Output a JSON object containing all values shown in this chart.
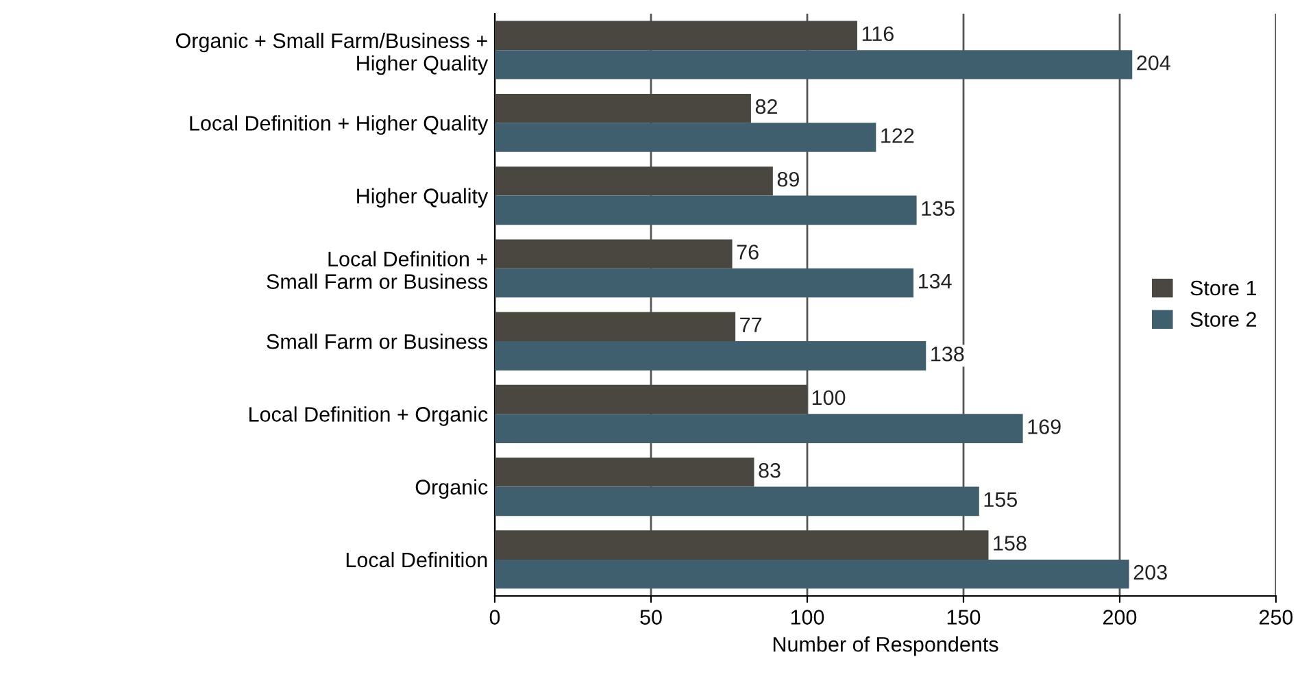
{
  "chart_data": {
    "type": "bar",
    "orientation": "horizontal",
    "categories": [
      "Organic + Small Farm/Business +\nHigher Quality",
      "Local Definition + Higher Quality",
      "Higher Quality",
      "Local Definition +\nSmall Farm or Business",
      "Small Farm or Business",
      "Local Definition + Organic",
      "Organic",
      "Local Definition"
    ],
    "series": [
      {
        "name": "Store 1",
        "color": "#4a4640",
        "values": [
          116,
          82,
          89,
          76,
          77,
          100,
          83,
          158
        ]
      },
      {
        "name": "Store 2",
        "color": "#3f5e6e",
        "values": [
          204,
          122,
          135,
          134,
          138,
          169,
          155,
          203
        ]
      }
    ],
    "xlabel": "Number of Respondents",
    "xlim": [
      0,
      250
    ],
    "xticks": [
      0,
      50,
      100,
      150,
      200,
      250
    ],
    "grid": "x",
    "legend": "right",
    "data_labels": true
  }
}
